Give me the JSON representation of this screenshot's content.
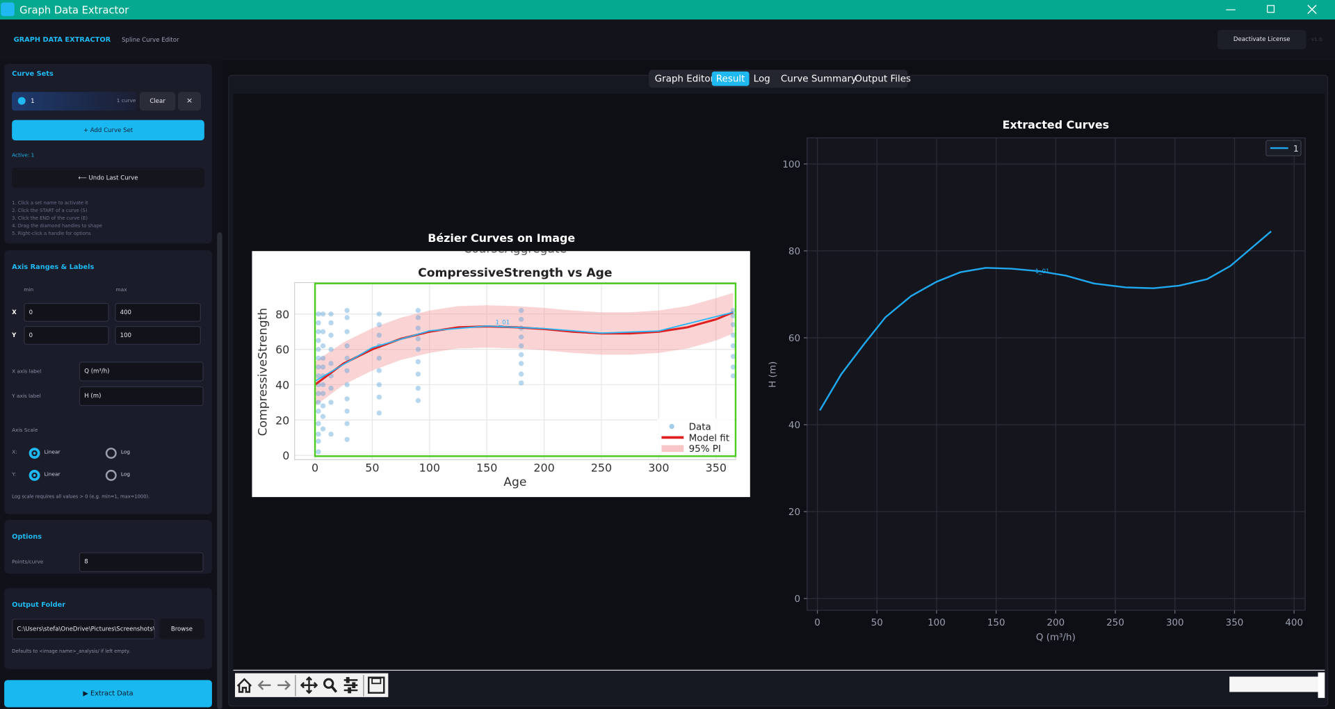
{
  "window": {
    "title": "Graph Data Extractor"
  },
  "header": {
    "app_name": "GRAPH DATA EXTRACTOR",
    "subtitle": "Spline Curve Editor",
    "license_button": "Deactivate License",
    "version": "v1.0"
  },
  "sidebar": {
    "curve_sets": {
      "heading": "Curve Sets",
      "set_name": "1",
      "set_count": "1 curve",
      "clear": "Clear",
      "remove": "×",
      "add": "+ Add Curve Set",
      "active": "Active: 1",
      "undo": "⟵  Undo Last Curve",
      "instructions": [
        "1. Click a set name to activate it",
        "2. Click the START of a curve  (S)",
        "3. Click the END of the curve  (E)",
        "4. Drag the diamond handles to shape",
        "5. Right-click a handle for options"
      ]
    },
    "axis": {
      "heading": "Axis Ranges & Labels",
      "min": "min",
      "max": "max",
      "x_label": "X",
      "x_min": "0",
      "x_max": "400",
      "y_label": "Y",
      "y_min": "0",
      "y_max": "100",
      "x_axis_caption": "X axis label",
      "x_axis_label": "Q (m³/h)",
      "y_axis_caption": "Y axis label",
      "y_axis_label": "H (m)",
      "scale_heading": "Axis Scale",
      "x_scale": "X:",
      "x_options": [
        "Linear",
        "Log"
      ],
      "y_scale": "Y:",
      "y_options": [
        "Linear",
        "Log"
      ],
      "note": "Log scale requires all values > 0 (e.g. min=1, max=1000)."
    },
    "options": {
      "heading": "Options",
      "points_caption": "Points/curve",
      "points": "8"
    },
    "output": {
      "heading": "Output Folder",
      "path": "C:\\Users\\stefa\\OneDrive\\Pictures\\Screenshots\\Sc",
      "browse": "Browse",
      "note": "Defaults to <image name>_analysis/ if left empty."
    },
    "extract": "▶  Extract Data"
  },
  "tabs": {
    "items": [
      "Graph Editor",
      "Result",
      "Log",
      "Curve Summary",
      "Output Files"
    ],
    "active": 1
  },
  "chart_data": [
    {
      "type": "scatter",
      "title": "Bézier Curves on Image",
      "image_header": "CoarseAggregate",
      "subtitle": "CompressiveStrength vs Age",
      "xlabel": "Age",
      "ylabel": "CompressiveStrength",
      "xlim": [
        -17.8,
        367.1
      ],
      "ylim": [
        -2.4,
        97.8
      ],
      "xticks": [
        0,
        50,
        100,
        150,
        200,
        250,
        300,
        350
      ],
      "yticks": [
        0,
        20,
        40,
        60,
        80
      ],
      "grid": true,
      "legend": "lower right",
      "series": [
        {
          "name": "Data",
          "kind": "points",
          "color": "#4a9ad8",
          "x": [
            3,
            3,
            3,
            3,
            3,
            3,
            3,
            3,
            3,
            3,
            3,
            3,
            3,
            3,
            3,
            3,
            7,
            7,
            7,
            7,
            7,
            7,
            7,
            7,
            7,
            7,
            7,
            14,
            14,
            14,
            14,
            14,
            14,
            14,
            14,
            14,
            28,
            28,
            28,
            28,
            28,
            28,
            28,
            28,
            28,
            28,
            28,
            56,
            56,
            56,
            56,
            56,
            56,
            56,
            56,
            56,
            90,
            90,
            90,
            90,
            90,
            90,
            90,
            90,
            90,
            180,
            180,
            180,
            180,
            180,
            180,
            180,
            180,
            180,
            365,
            365,
            365,
            365,
            365,
            365,
            365,
            365
          ],
          "values": [
            2,
            8,
            12,
            18,
            25,
            30,
            35,
            40,
            45,
            50,
            55,
            60,
            65,
            70,
            75,
            80,
            15,
            22,
            28,
            35,
            40,
            45,
            50,
            55,
            62,
            70,
            80,
            12,
            30,
            38,
            45,
            52,
            60,
            68,
            75,
            80,
            9,
            18,
            25,
            32,
            40,
            48,
            55,
            62,
            70,
            78,
            82,
            24,
            33,
            40,
            48,
            55,
            62,
            68,
            74,
            80,
            31,
            38,
            46,
            53,
            60,
            66,
            72,
            78,
            82,
            41,
            46,
            52,
            57,
            62,
            67,
            72,
            77,
            82,
            45,
            50,
            56,
            62,
            68,
            74,
            79,
            82
          ]
        },
        {
          "name": "Model fit",
          "kind": "line",
          "color": "#e02020",
          "x": [
            0,
            25,
            50,
            75,
            100,
            125,
            150,
            175,
            200,
            225,
            250,
            275,
            300,
            325,
            350,
            365
          ],
          "values": [
            40,
            52,
            60,
            66,
            70,
            72.5,
            73,
            72.5,
            71.5,
            70,
            69,
            69,
            70,
            72.5,
            77,
            81
          ]
        },
        {
          "name": "95% PI",
          "kind": "band",
          "color": "#f4a0a0",
          "x": [
            0,
            25,
            50,
            75,
            100,
            125,
            150,
            175,
            200,
            225,
            250,
            275,
            300,
            325,
            350,
            365
          ],
          "upper": [
            53,
            64,
            72,
            78,
            82,
            84.5,
            85,
            84.5,
            83.5,
            82,
            81,
            81,
            82,
            84.5,
            89,
            92
          ],
          "lower": [
            28,
            40,
            48,
            54,
            58,
            60.5,
            61,
            60.5,
            59.5,
            58,
            57,
            57,
            58,
            60.5,
            65,
            69
          ]
        }
      ],
      "overlay": {
        "label": "1_01",
        "color": "#29b6f6",
        "x": [
          0,
          50,
          100,
          150,
          200,
          250,
          300,
          365
        ],
        "values": [
          42,
          61,
          70.5,
          73.2,
          71.8,
          69.2,
          70.4,
          81
        ]
      }
    },
    {
      "type": "line",
      "title": "Extracted Curves",
      "xlabel": "Q (m³/h)",
      "ylabel": "H (m)",
      "xlim": [
        -8.6,
        409.3
      ],
      "ylim": [
        -2.7,
        106
      ],
      "xticks": [
        0,
        50,
        100,
        150,
        200,
        250,
        300,
        350,
        400
      ],
      "yticks": [
        0,
        20,
        40,
        60,
        80,
        100
      ],
      "grid": true,
      "legend": "upper right",
      "series": [
        {
          "name": "1",
          "color": "#1fa8f0",
          "label": "1_01",
          "x": [
            2.1,
            20,
            39.3,
            57,
            78.6,
            100,
            120,
            141.4,
            162.9,
            187,
            208.6,
            232,
            258.6,
            282,
            303.6,
            327,
            346.4,
            380.7
          ],
          "values": [
            43.3,
            51.6,
            58.6,
            64.7,
            69.6,
            72.9,
            75.1,
            76.1,
            75.9,
            75.3,
            74.3,
            72.5,
            71.6,
            71.4,
            72,
            73.5,
            76.5,
            84.5
          ]
        }
      ]
    }
  ]
}
